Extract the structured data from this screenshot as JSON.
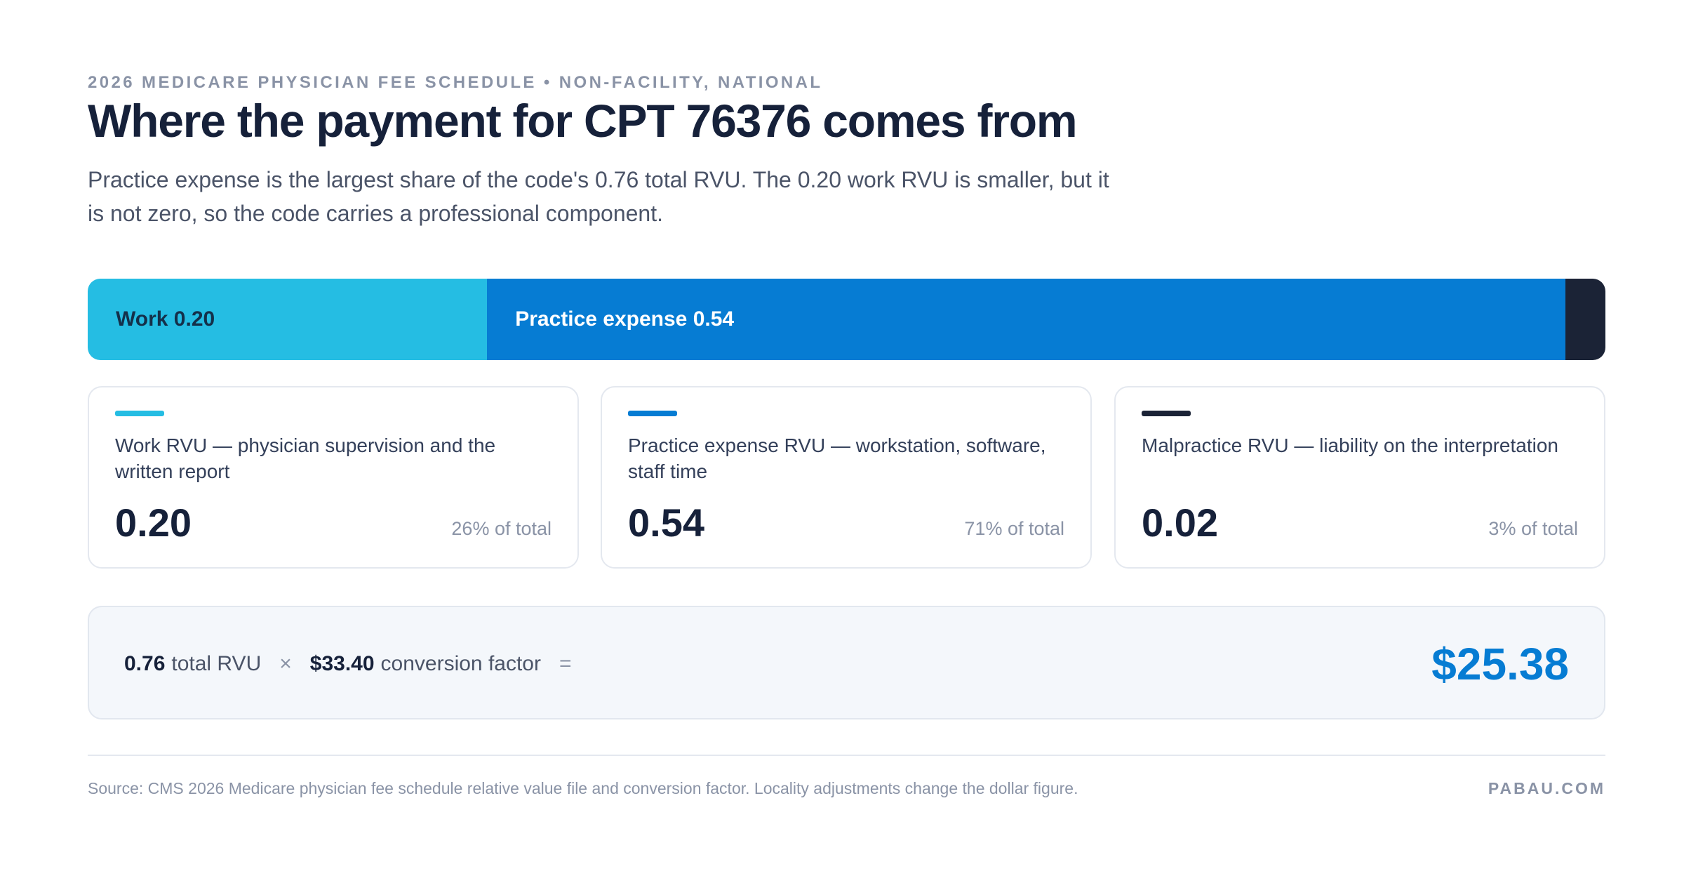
{
  "header": {
    "eyebrow": "2026 MEDICARE PHYSICIAN FEE SCHEDULE • NON-FACILITY, NATIONAL",
    "title": "Where the payment for CPT 76376 comes from",
    "subtitle": "Practice expense is the largest share of the code's 0.76 total RVU. The 0.20 work RVU is smaller, but it is not zero, so the code carries a professional component."
  },
  "chart_data": {
    "type": "bar",
    "orientation": "horizontal-stacked",
    "categories": [
      "Work",
      "Practice expense",
      "Malpractice"
    ],
    "values": [
      0.2,
      0.54,
      0.02
    ],
    "total": 0.76,
    "segment_labels": [
      "Work 0.20",
      "Practice expense 0.54",
      ""
    ],
    "colors": [
      "#25bde3",
      "#067cd3",
      "#1b2336"
    ]
  },
  "components": [
    {
      "label": "Work RVU — physician supervision and the written report",
      "value": "0.20",
      "pct": "26% of total",
      "color": "#25bde3"
    },
    {
      "label": "Practice expense RVU — workstation, software, staff time",
      "value": "0.54",
      "pct": "71% of total",
      "color": "#067cd3"
    },
    {
      "label": "Malpractice RVU — liability on the interpretation",
      "value": "0.02",
      "pct": "3% of total",
      "color": "#1b2336"
    }
  ],
  "calculation": {
    "total_rvu_value": "0.76",
    "total_rvu_label": "total RVU",
    "times": "×",
    "conversion_value": "$33.40",
    "conversion_label": "conversion factor",
    "equals": "=",
    "result": "$25.38"
  },
  "footer": {
    "source": "Source: CMS 2026 Medicare physician fee schedule relative value file and conversion factor. Locality adjustments change the dollar figure.",
    "brand": "PABAU.COM"
  }
}
